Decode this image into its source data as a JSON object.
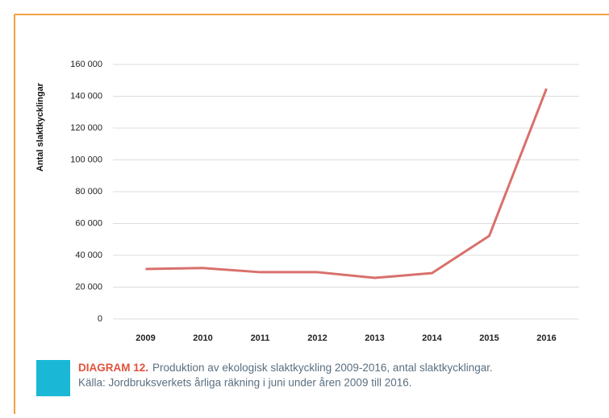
{
  "chart_data": {
    "type": "line",
    "y_label": "Antal slaktkycklingar",
    "categories": [
      "2009",
      "2010",
      "2011",
      "2012",
      "2013",
      "2014",
      "2015",
      "2016"
    ],
    "series": [
      {
        "name": "Antal slaktkycklingar",
        "color": "#d9706c",
        "values": [
          31400,
          32000,
          29400,
          29400,
          25800,
          28800,
          52200,
          144800
        ]
      }
    ],
    "ylim": [
      0,
      160000
    ],
    "yticks": [
      0,
      {
        "value": 20000,
        "label": "20 000"
      },
      {
        "value": 40000,
        "label": "40 000"
      },
      {
        "value": 60000,
        "label": "60 000"
      },
      {
        "value": 80000,
        "label": "80 000"
      },
      {
        "value": 100000,
        "label": "100 000"
      },
      {
        "value": 120000,
        "label": "120 000"
      },
      {
        "value": 140000,
        "label": "140 000"
      },
      {
        "value": 160000,
        "label": "160 000"
      }
    ],
    "grid": true,
    "caption_label": "DIAGRAM 12.",
    "caption_text": "Produktion av ekologisk slaktkyckling 2009-2016, antal slaktkycklingar.",
    "caption_source": "Källa: Jordbruksverkets årliga räkning i juni under åren 2009 till 2016."
  }
}
